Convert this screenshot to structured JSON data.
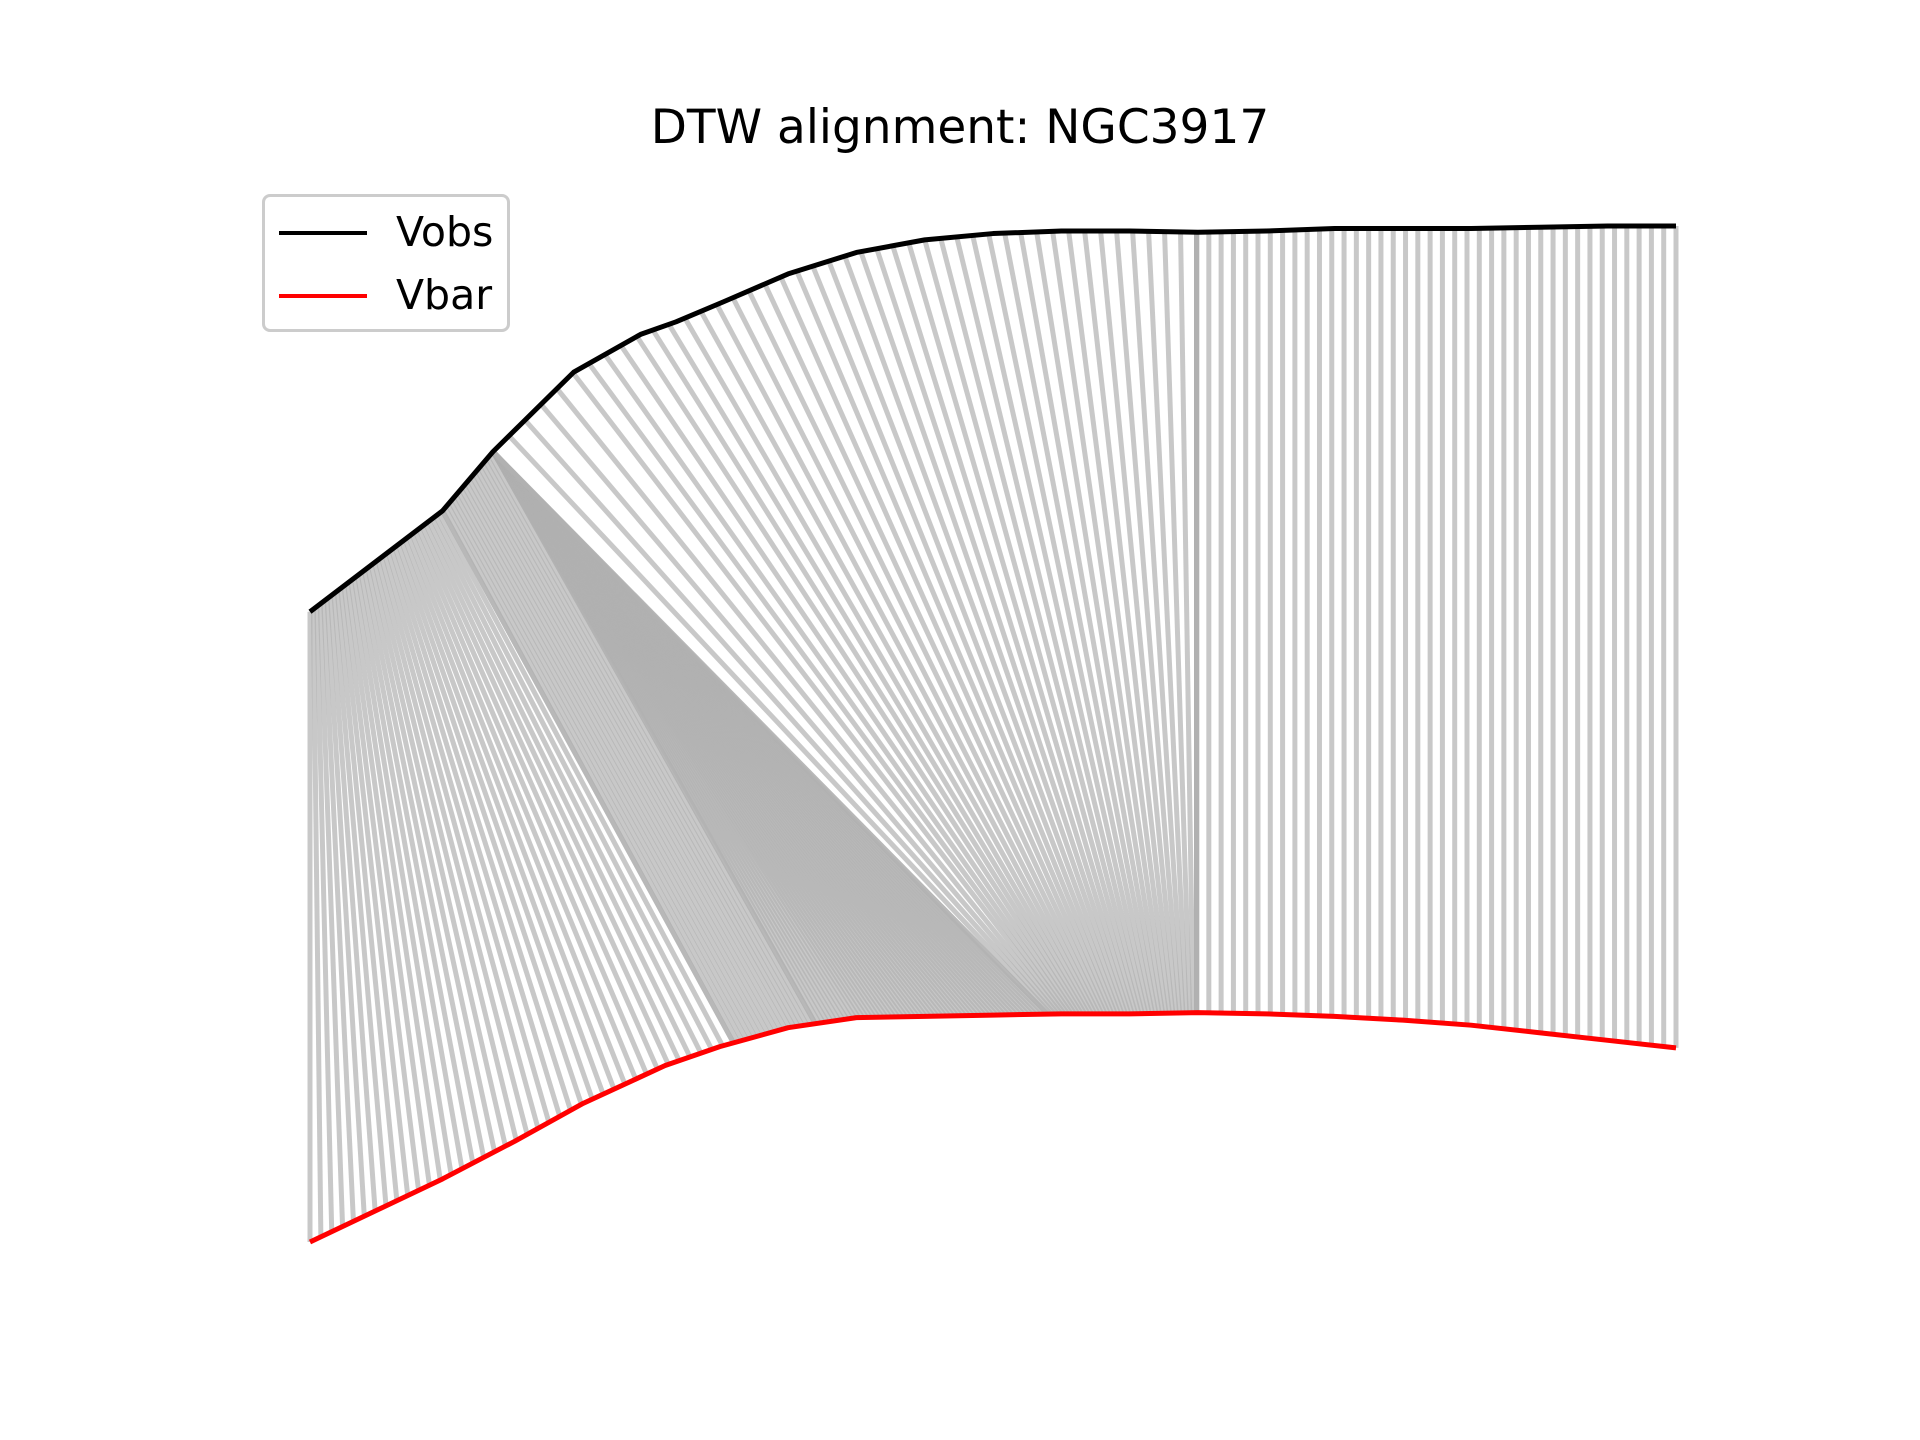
{
  "chart_data": {
    "type": "line",
    "title": "DTW alignment: NGC3917",
    "xlabel": "",
    "ylabel": "",
    "axes_visible": false,
    "grid": false,
    "legend_position": "top-left",
    "colors": {
      "Vobs": "#000000",
      "Vbar": "#ff0000",
      "alignment_lines": "#b0b0b0",
      "legend_border": "#cccccc"
    },
    "series": [
      {
        "name": "Vobs",
        "x": [
          0,
          0.097,
          0.134,
          0.193,
          0.242,
          0.268,
          0.303,
          0.35,
          0.4,
          0.45,
          0.5,
          0.55,
          0.6,
          0.65,
          0.7,
          0.75,
          0.8,
          0.85,
          0.9,
          0.95,
          1.0
        ],
        "y": [
          0.5,
          0.58,
          0.627,
          0.69,
          0.72,
          0.73,
          0.746,
          0.768,
          0.785,
          0.795,
          0.8,
          0.802,
          0.802,
          0.801,
          0.802,
          0.804,
          0.804,
          0.804,
          0.805,
          0.806,
          0.806
        ]
      },
      {
        "name": "Vbar",
        "x": [
          0,
          0.097,
          0.15,
          0.2,
          0.26,
          0.3,
          0.35,
          0.4,
          0.45,
          0.5,
          0.55,
          0.6,
          0.65,
          0.7,
          0.75,
          0.8,
          0.85,
          0.9,
          0.95,
          1.0
        ],
        "y": [
          0.0,
          0.05,
          0.08,
          0.11,
          0.14,
          0.155,
          0.17,
          0.178,
          0.179,
          0.18,
          0.181,
          0.181,
          0.182,
          0.181,
          0.179,
          0.176,
          0.172,
          0.166,
          0.16,
          0.154
        ]
      }
    ],
    "alignment_groups": [
      {
        "vobs_range": [
          0.0,
          0.097
        ],
        "vbar_range": [
          0.0,
          0.31
        ],
        "count": 40
      },
      {
        "vobs_range": [
          0.097,
          0.134
        ],
        "vbar_range": [
          0.31,
          0.37
        ],
        "count": 20
      },
      {
        "vobs_range": [
          0.134,
          0.134
        ],
        "vbar_range": [
          0.37,
          0.54
        ],
        "count": 60
      },
      {
        "vobs_range": [
          0.134,
          0.649
        ],
        "vbar_range": [
          0.54,
          0.649
        ],
        "count": 45
      },
      {
        "vobs_range": [
          0.649,
          0.649
        ],
        "vbar_range": [
          0.649,
          0.649
        ],
        "count": 12
      },
      {
        "vobs_range": [
          0.649,
          1.0
        ],
        "vbar_range": [
          0.649,
          1.0
        ],
        "count": 40
      }
    ]
  }
}
